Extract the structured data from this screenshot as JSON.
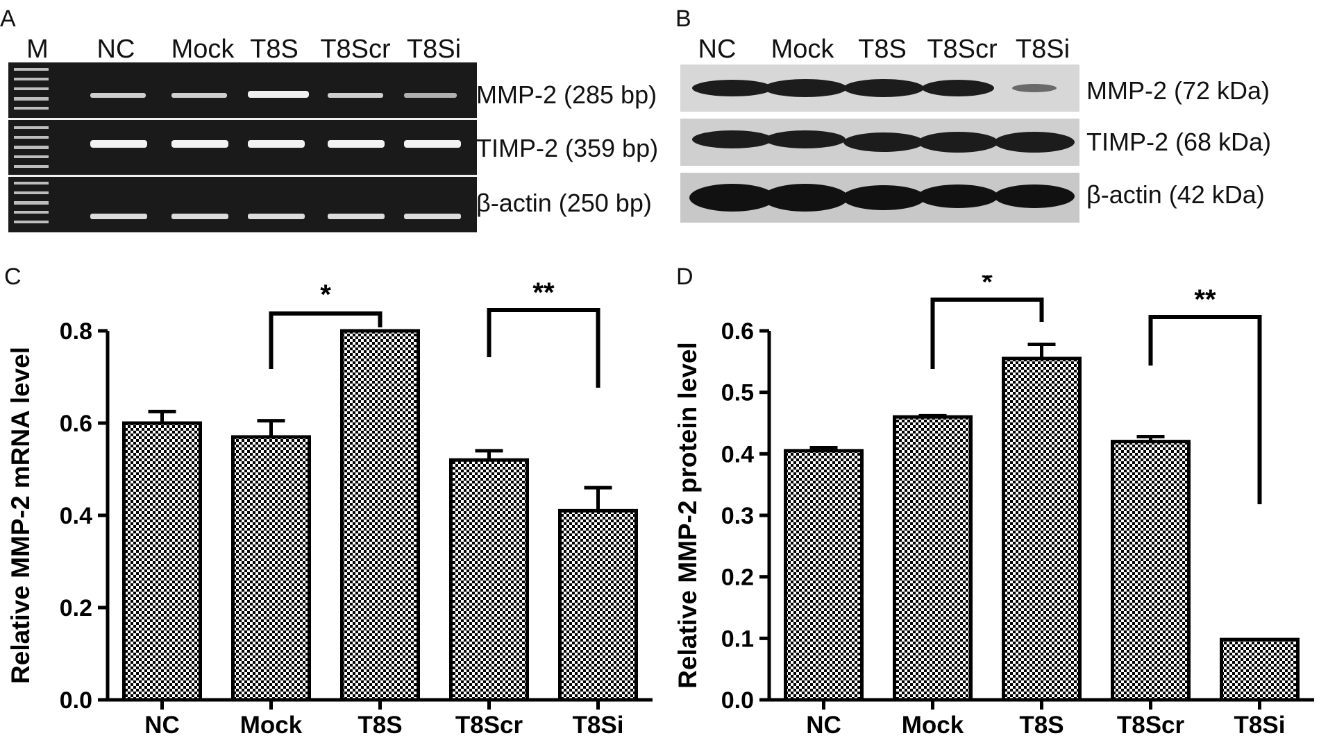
{
  "panels": {
    "A": {
      "letter": "A",
      "marker_label": "M",
      "lanes": [
        "NC",
        "Mock",
        "T8S",
        "T8Scr",
        "T8Si"
      ],
      "bands": [
        "MMP-2 (285 bp)",
        "TIMP-2 (359 bp)",
        "β-actin (250 bp)"
      ]
    },
    "B": {
      "letter": "B",
      "lanes": [
        "NC",
        "Mock",
        "T8S",
        "T8Scr",
        "T8Si"
      ],
      "bands": [
        "MMP-2 (72 kDa)",
        "TIMP-2 (68 kDa)",
        "β-actin (42 kDa)"
      ]
    },
    "C": {
      "letter": "C"
    },
    "D": {
      "letter": "D"
    }
  },
  "colors": {
    "gel_background": "#1a1a1a",
    "gel_band": "#e8e8e8",
    "blot_background": "#d9d9d9",
    "blot_band": "#1c1c1c",
    "bar_pattern_dark": "#000000",
    "bar_pattern_light": "#ffffff"
  },
  "chart_data": [
    {
      "panel": "C",
      "type": "bar",
      "categories": [
        "NC",
        "Mock",
        "T8S",
        "T8Scr",
        "T8Si"
      ],
      "values": [
        0.6,
        0.57,
        0.8,
        0.52,
        0.41
      ],
      "errors": [
        0.025,
        0.035,
        0.0,
        0.02,
        0.05
      ],
      "ylabel": "Relative MMP-2 mRNA level",
      "ylim": [
        0,
        0.8
      ],
      "yticks": [
        "0.0",
        "0.2",
        "0.4",
        "0.6",
        "0.8"
      ],
      "significance": [
        {
          "from": "Mock",
          "to": "T8S",
          "label": "*"
        },
        {
          "from": "T8Scr",
          "to": "T8Si",
          "label": "**"
        }
      ]
    },
    {
      "panel": "D",
      "type": "bar",
      "categories": [
        "NC",
        "Mock",
        "T8S",
        "T8Scr",
        "T8Si"
      ],
      "values": [
        0.405,
        0.46,
        0.555,
        0.42,
        0.098
      ],
      "errors": [
        0.005,
        0.002,
        0.023,
        0.008,
        0.0
      ],
      "ylabel": "Relative MMP-2 protein level",
      "ylim": [
        0,
        0.6
      ],
      "yticks": [
        "0.0",
        "0.1",
        "0.2",
        "0.3",
        "0.4",
        "0.5",
        "0.6"
      ],
      "significance": [
        {
          "from": "Mock",
          "to": "T8S",
          "label": "*"
        },
        {
          "from": "T8Scr",
          "to": "T8Si",
          "label": "**"
        }
      ]
    }
  ]
}
